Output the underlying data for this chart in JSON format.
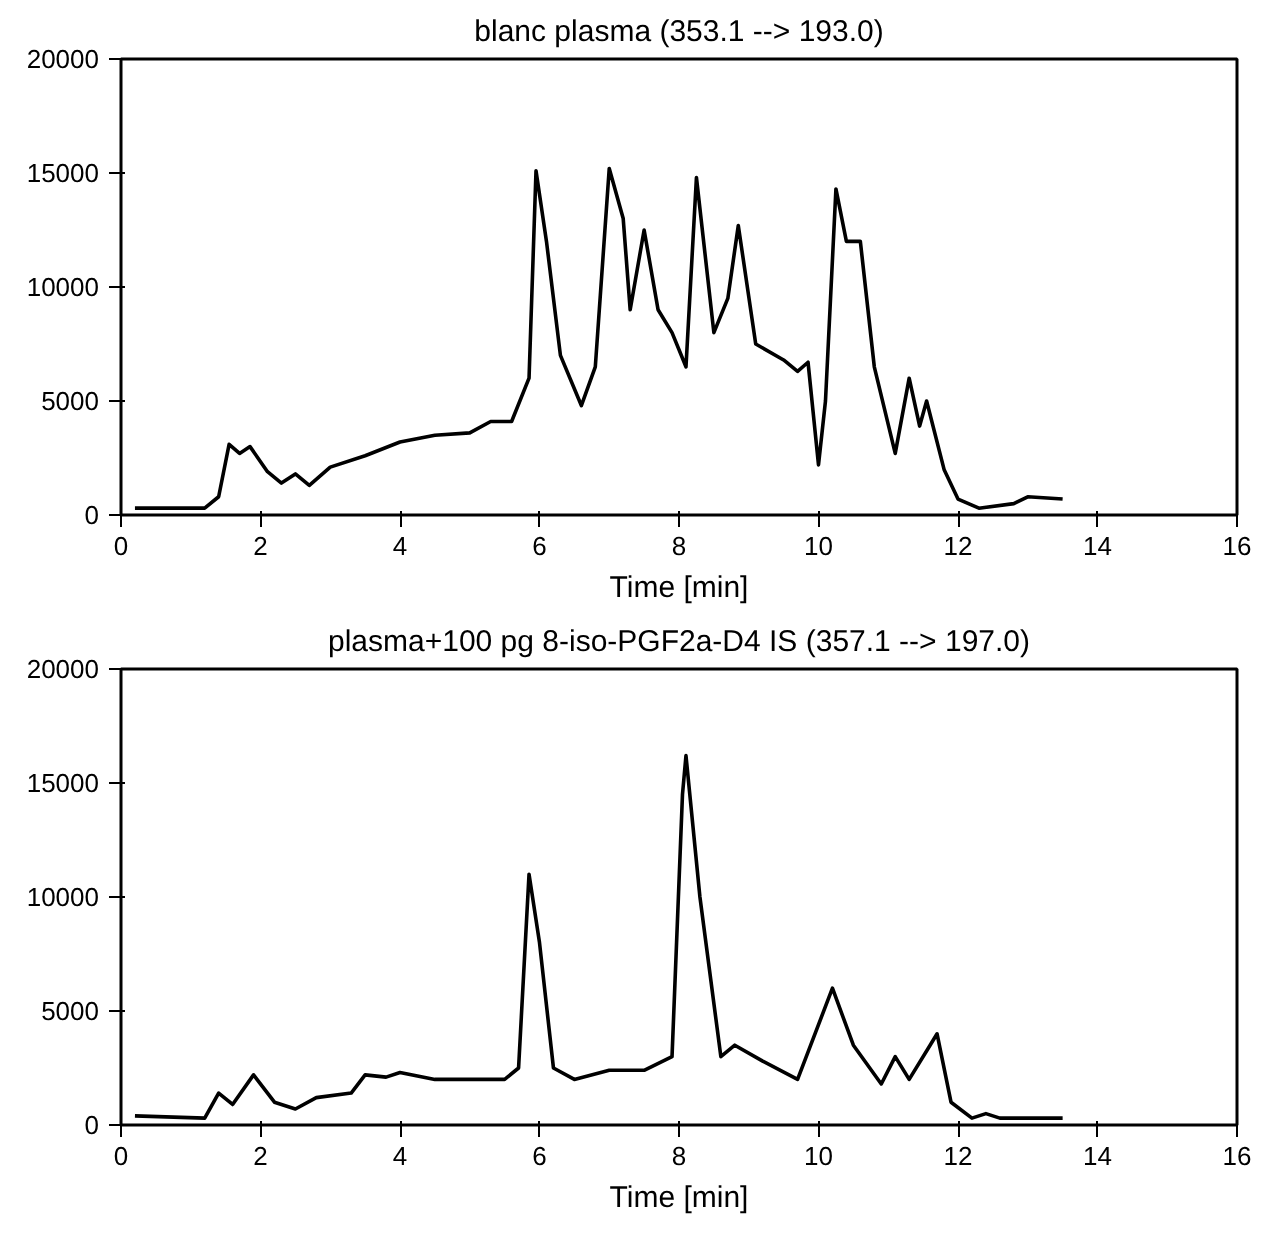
{
  "chart_data": [
    {
      "type": "line",
      "title": "blanc plasma (353.1 --> 193.0)",
      "xlabel": "Time [min]",
      "xlim": [
        0,
        16
      ],
      "ylim": [
        0,
        20000
      ],
      "xticks": [
        0,
        2,
        4,
        6,
        8,
        10,
        12,
        14,
        16
      ],
      "yticks": [
        0,
        5000,
        10000,
        15000,
        20000
      ],
      "grid": false,
      "marker": "none",
      "line_style": "solid",
      "series": [
        {
          "color": "#000000",
          "x": [
            0.2,
            1.2,
            1.4,
            1.55,
            1.7,
            1.85,
            2.1,
            2.3,
            2.5,
            2.7,
            3.0,
            3.5,
            4.0,
            4.5,
            5.0,
            5.3,
            5.6,
            5.85,
            5.95,
            6.1,
            6.3,
            6.6,
            6.8,
            7.0,
            7.2,
            7.3,
            7.5,
            7.7,
            7.9,
            8.1,
            8.25,
            8.5,
            8.7,
            8.85,
            9.1,
            9.5,
            9.7,
            9.85,
            10.0,
            10.1,
            10.25,
            10.4,
            10.6,
            10.8,
            11.1,
            11.3,
            11.45,
            11.55,
            11.8,
            12.0,
            12.3,
            12.8,
            13.0,
            13.5
          ],
          "values": [
            300,
            300,
            800,
            3100,
            2700,
            3000,
            1900,
            1400,
            1800,
            1300,
            2100,
            2600,
            3200,
            3500,
            3600,
            4100,
            4100,
            6000,
            15100,
            12000,
            7000,
            4800,
            6500,
            15200,
            13000,
            9000,
            12500,
            9000,
            8000,
            6500,
            14800,
            8000,
            9500,
            12700,
            7500,
            6800,
            6300,
            6700,
            2200,
            5000,
            14300,
            12000,
            12000,
            6500,
            2700,
            6000,
            3900,
            5000,
            2000,
            700,
            300,
            500,
            800,
            700
          ]
        }
      ]
    },
    {
      "type": "line",
      "title": "plasma+100 pg 8-iso-PGF2a-D4 IS (357.1 --> 197.0)",
      "xlabel": "Time [min]",
      "xlim": [
        0,
        16
      ],
      "ylim": [
        0,
        20000
      ],
      "xticks": [
        0,
        2,
        4,
        6,
        8,
        10,
        12,
        14,
        16
      ],
      "yticks": [
        0,
        5000,
        10000,
        15000,
        20000
      ],
      "grid": false,
      "marker": "none",
      "line_style": "solid",
      "series": [
        {
          "color": "#000000",
          "x": [
            0.2,
            1.2,
            1.4,
            1.6,
            1.9,
            2.2,
            2.5,
            2.8,
            3.3,
            3.5,
            3.8,
            4.0,
            4.5,
            5.0,
            5.5,
            5.7,
            5.85,
            6.0,
            6.2,
            6.5,
            7.0,
            7.5,
            7.9,
            8.05,
            8.1,
            8.3,
            8.6,
            8.8,
            9.2,
            9.7,
            10.2,
            10.5,
            10.9,
            11.1,
            11.3,
            11.6,
            11.7,
            11.9,
            12.2,
            12.4,
            12.6,
            13.5
          ],
          "values": [
            400,
            300,
            1400,
            900,
            2200,
            1000,
            700,
            1200,
            1400,
            2200,
            2100,
            2300,
            2000,
            2000,
            2000,
            2500,
            11000,
            8000,
            2500,
            2000,
            2400,
            2400,
            3000,
            14500,
            16200,
            10000,
            3000,
            3500,
            2800,
            2000,
            6000,
            3500,
            1800,
            3000,
            2000,
            3500,
            4000,
            1000,
            300,
            500,
            300,
            300
          ]
        }
      ]
    }
  ]
}
